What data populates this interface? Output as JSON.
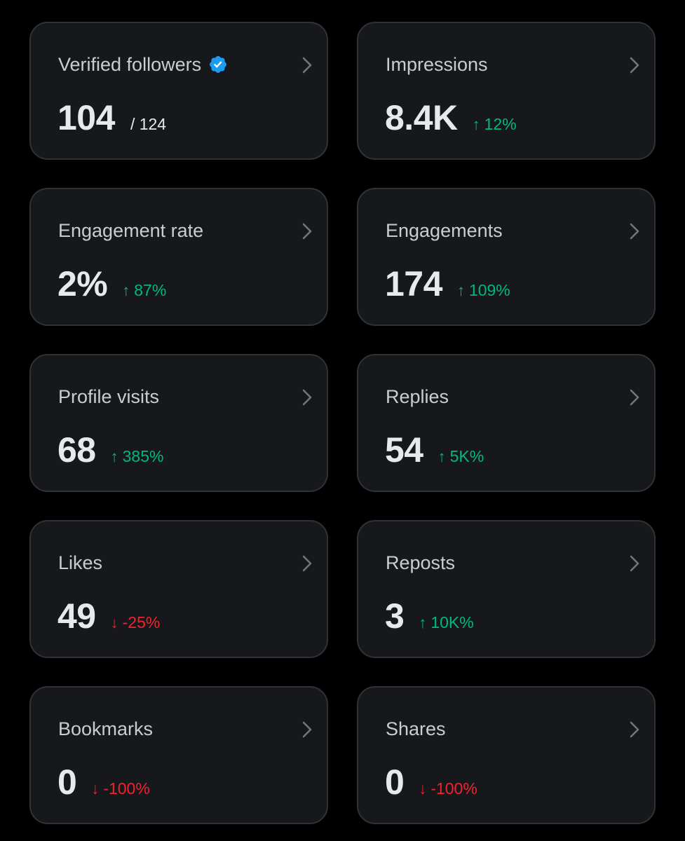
{
  "colors": {
    "background": "#000000",
    "card_background": "#16181c",
    "card_border": "#2f3336",
    "positive": "#00ba7c",
    "negative": "#f4212e",
    "verified_badge": "#1d9bf0"
  },
  "cards": [
    {
      "id": "verified-followers",
      "title": "Verified followers",
      "value": "104",
      "denominator": "/ 124",
      "verified_badge": true
    },
    {
      "id": "impressions",
      "title": "Impressions",
      "value": "8.4K",
      "change": "12%",
      "direction": "up"
    },
    {
      "id": "engagement-rate",
      "title": "Engagement rate",
      "value": "2%",
      "change": "87%",
      "direction": "up"
    },
    {
      "id": "engagements",
      "title": "Engagements",
      "value": "174",
      "change": "109%",
      "direction": "up"
    },
    {
      "id": "profile-visits",
      "title": "Profile visits",
      "value": "68",
      "change": "385%",
      "direction": "up"
    },
    {
      "id": "replies",
      "title": "Replies",
      "value": "54",
      "change": "5K%",
      "direction": "up"
    },
    {
      "id": "likes",
      "title": "Likes",
      "value": "49",
      "change": "-25%",
      "direction": "down"
    },
    {
      "id": "reposts",
      "title": "Reposts",
      "value": "3",
      "change": "10K%",
      "direction": "up"
    },
    {
      "id": "bookmarks",
      "title": "Bookmarks",
      "value": "0",
      "change": "-100%",
      "direction": "down"
    },
    {
      "id": "shares",
      "title": "Shares",
      "value": "0",
      "change": "-100%",
      "direction": "down"
    }
  ],
  "icons": {
    "chevron": "chevron-right-icon",
    "verified": "verified-badge-icon",
    "up": "arrow-up-icon",
    "down": "arrow-down-icon"
  }
}
